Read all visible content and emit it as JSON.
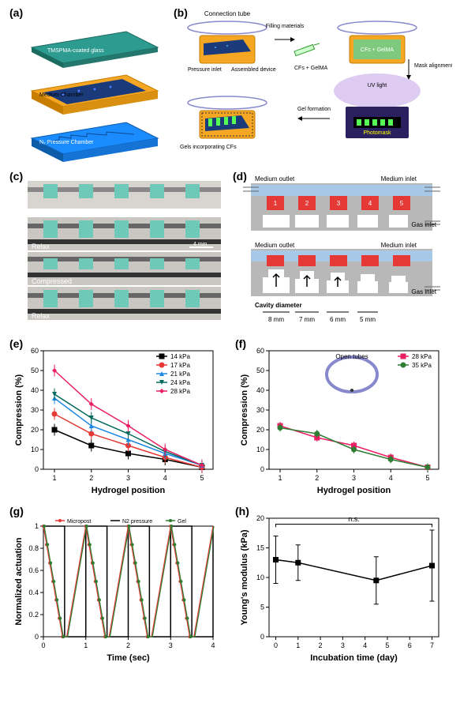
{
  "panels": {
    "a": {
      "label": "(a)",
      "glass_label": "TMSPMA-coated glass",
      "medium_label": "Medium Chamber",
      "n2_label": "N₂ Pressure Chamber",
      "glass_color": "#2d9b8f",
      "medium_color": "#f5a623",
      "n2_color": "#1a8cff"
    },
    "b": {
      "label": "(b)",
      "conn_tube": "Connection tube",
      "pressure_inlet": "Pressure inlet",
      "assembled": "Assembled device",
      "filling": "Filling materials",
      "cfs_gelma": "CFs + GelMA",
      "cfs_gelma2": "CFs + GelMA",
      "mask_step": "Mask alignment & UV exposure",
      "uv_light": "UV light",
      "photomask": "Photomask",
      "gel_formation": "Gel formation",
      "gels_cfs": "Gels incorporating CFs"
    },
    "c": {
      "label": "(c)",
      "relax": "Relax",
      "compressed": "Compressed",
      "relax2": "Relax",
      "scale": "4 mm"
    },
    "d": {
      "label": "(d)",
      "med_out": "Medium outlet",
      "med_in": "Medium inlet",
      "gas_in": "Gas inlet",
      "cavity": "Cavity diameter",
      "d1": "8 mm",
      "d2": "7 mm",
      "d3": "6 mm",
      "d4": "5 mm"
    },
    "e": {
      "label": "(e)",
      "xlabel": "Hydrogel position",
      "ylabel": "Compression (%)",
      "xticks": [
        1,
        2,
        3,
        4,
        5
      ],
      "yticks": [
        0,
        10,
        20,
        30,
        40,
        50,
        60
      ],
      "series": [
        {
          "name": "14 kPa",
          "color": "#000000",
          "marker": "square",
          "data": [
            20,
            12,
            8,
            5,
            1
          ]
        },
        {
          "name": "17 kPa",
          "color": "#e53935",
          "marker": "circle",
          "data": [
            28,
            18,
            12,
            6,
            1
          ]
        },
        {
          "name": "21 kPa",
          "color": "#1e88e5",
          "marker": "triangle",
          "data": [
            36,
            22,
            15,
            8,
            2
          ]
        },
        {
          "name": "24 kPa",
          "color": "#00695c",
          "marker": "triangle-down",
          "data": [
            38,
            26,
            18,
            9,
            2
          ]
        },
        {
          "name": "28 kPa",
          "color": "#e91e63",
          "marker": "diamond",
          "data": [
            50,
            33,
            22,
            10,
            2
          ]
        }
      ],
      "err": 3
    },
    "f": {
      "label": "(f)",
      "xlabel": "Hydrogel position",
      "ylabel": "Compression (%)",
      "inset": "Open tubes",
      "xticks": [
        1,
        2,
        3,
        4,
        5
      ],
      "yticks": [
        0,
        10,
        20,
        30,
        40,
        50,
        60
      ],
      "series": [
        {
          "name": "28 kPa",
          "color": "#e91e63",
          "marker": "square",
          "data": [
            22,
            16,
            12,
            6,
            1
          ]
        },
        {
          "name": "35 kPa",
          "color": "#2e7d32",
          "marker": "circle",
          "data": [
            21,
            18,
            10,
            5,
            1
          ]
        }
      ],
      "err": 2
    },
    "g": {
      "label": "(g)",
      "xlabel": "Time (sec)",
      "ylabel": "Normalized actuation",
      "xticks": [
        0,
        1,
        2,
        3,
        4
      ],
      "yticks": [
        0.0,
        0.2,
        0.4,
        0.6,
        0.8,
        1.0
      ],
      "series_names": [
        "Micropost",
        "N2 pressure",
        "Gel"
      ],
      "colors": {
        "micropost": "#e53935",
        "n2": "#000000",
        "gel": "#2e7d32"
      },
      "period": 1.0
    },
    "h": {
      "label": "(h)",
      "xlabel": "Incubation time (day)",
      "ylabel": "Young's modulus (kPa)",
      "ns": "n.s.",
      "xticks": [
        0,
        1,
        2,
        3,
        4,
        5,
        6,
        7
      ],
      "yticks": [
        0,
        5,
        10,
        15,
        20
      ],
      "data": {
        "x": [
          0,
          1,
          4.5,
          7
        ],
        "y": [
          13,
          12.5,
          9.5,
          12
        ],
        "err": [
          4,
          3,
          4,
          6
        ]
      },
      "color": "#000000"
    }
  },
  "chart_style": {
    "bg": "#ffffff",
    "axis": "#000000",
    "grid": "none",
    "label_fontsize": 11,
    "tick_fontsize": 9,
    "legend_fontsize": 8,
    "line_width": 1.5,
    "marker_size": 4
  }
}
